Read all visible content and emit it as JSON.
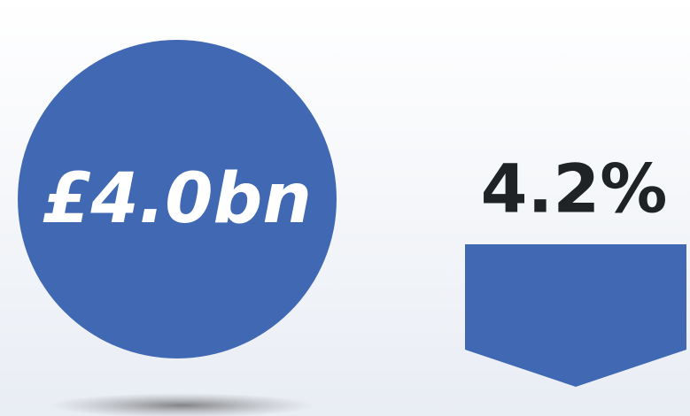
{
  "figure": {
    "amount": "£4.0bn",
    "change": "4.2%"
  }
}
